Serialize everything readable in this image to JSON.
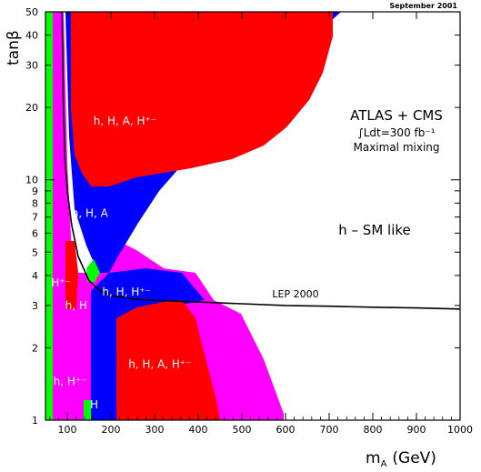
{
  "chart_data": {
    "type": "area",
    "title": "",
    "date_stamp": "September 2001",
    "xlabel": "m",
    "xlabel_sub": "A",
    "xlabel_unit": "(GeV)",
    "ylabel": "tanβ",
    "xlim": [
      50,
      1000
    ],
    "ylim": [
      1,
      50
    ],
    "yscale": "log",
    "x_ticks": [
      100,
      200,
      300,
      400,
      500,
      600,
      700,
      800,
      900,
      1000
    ],
    "y_ticks": [
      1,
      2,
      3,
      4,
      5,
      6,
      7,
      8,
      9,
      10,
      20,
      30,
      40,
      50
    ],
    "annotations": {
      "experiment": "ATLAS + CMS",
      "luminosity": "∫Ldt=300 fb⁻¹",
      "scenario": "Maximal mixing",
      "sm_like": "h – SM like",
      "lep": "LEP 2000"
    },
    "region_labels": [
      {
        "text": "h, H, A, H⁺⁻",
        "at": [
          160,
          17
        ]
      },
      {
        "text": "h, H, A",
        "at": [
          110,
          7
        ]
      },
      {
        "text": "h, H, H⁺⁻",
        "at": [
          180,
          3.3
        ]
      },
      {
        "text": "h, H",
        "at": [
          95,
          2.9
        ]
      },
      {
        "text": "H⁺⁻",
        "at": [
          63,
          3.6
        ]
      },
      {
        "text": "h, H, A, H⁺⁻",
        "at": [
          240,
          1.65
        ]
      },
      {
        "text": "h, H⁺⁻",
        "at": [
          68,
          1.4
        ]
      },
      {
        "text": "H",
        "at": [
          152,
          1.12
        ]
      }
    ],
    "lep_curve": {
      "name": "LEP 2000",
      "x": [
        88,
        91,
        95,
        100,
        110,
        125,
        150,
        175,
        200,
        250,
        300,
        400,
        500,
        600,
        700,
        800,
        900,
        1000
      ],
      "y": [
        50,
        20,
        12,
        9,
        6.5,
        4.8,
        3.8,
        3.45,
        3.3,
        3.2,
        3.15,
        3.1,
        3.05,
        3.0,
        2.98,
        2.95,
        2.93,
        2.9
      ]
    },
    "colors": {
      "red": "#ff0000",
      "blue": "#0000ff",
      "magenta": "#ff00ff",
      "green": "#00ff00",
      "curve": "#000000"
    }
  }
}
